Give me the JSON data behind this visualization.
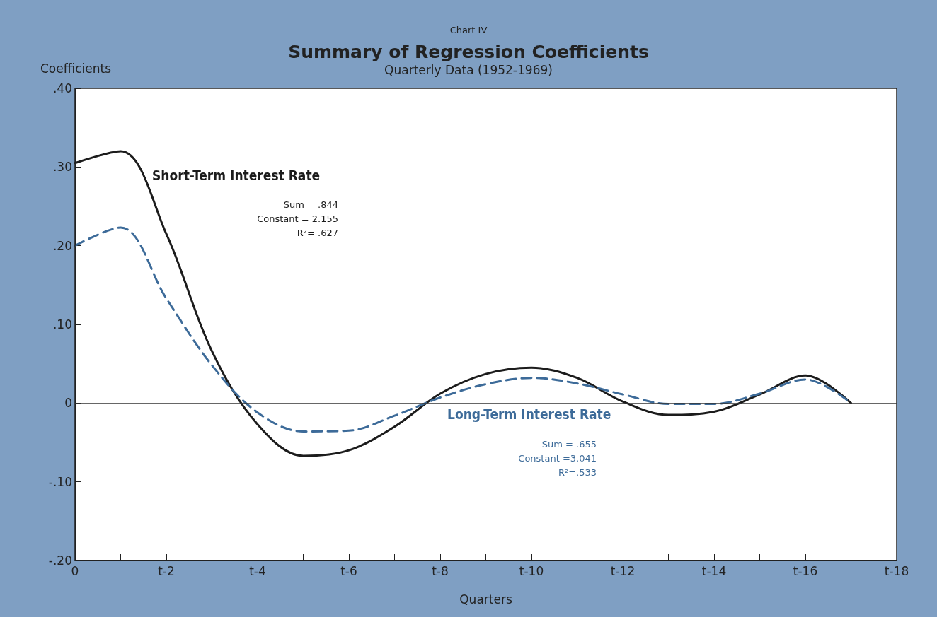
{
  "chart_data": {
    "type": "line",
    "title": "Summary of Regression Coefficients",
    "subtitle": "Quarterly Data (1952-1969)",
    "xlabel": "Quarters",
    "ylabel": "Coefficients",
    "annotations": [
      "Chart IV",
      "Sum = .844\nConstant = 2.155\nR²= .627",
      "Sum = .655\nConstant =3.041\nR²=.533"
    ],
    "series": [
      {
        "name": "Short-Term Interest Rate",
        "color": "#1c1c1c",
        "line_style": "solid",
        "values": [
          0.305,
          0.32,
          0.215,
          0.066,
          -0.027,
          -0.067,
          -0.06,
          -0.03,
          0.012,
          0.037,
          0.045,
          0.032,
          0.002,
          -0.015,
          -0.011,
          0.011,
          0.035,
          0,
          null
        ]
      },
      {
        "name": "Long-Term Interest Rate",
        "color": "#3d6b99",
        "line_style": "dashed",
        "values": [
          0.2,
          0.223,
          0.133,
          0.048,
          -0.012,
          -0.036,
          -0.035,
          -0.016,
          0.007,
          0.024,
          0.032,
          0.025,
          0.011,
          -0.001,
          -0.001,
          0.012,
          0.03,
          0,
          null
        ]
      }
    ],
    "categories": [
      "0",
      null,
      "t-2",
      null,
      "t-4",
      null,
      "t-6",
      null,
      "t-8",
      null,
      "t-10",
      null,
      "t-12",
      null,
      "t-14",
      null,
      "t-16",
      null,
      "t-18"
    ],
    "ylim": [
      -0.2,
      0.4
    ],
    "yticks": [
      {
        "value": -0.2,
        "label": "-.20"
      },
      {
        "value": -0.1,
        "label": "-.10"
      },
      0,
      {
        "value": 0.1,
        "label": ".10"
      },
      {
        "value": 0.2,
        "label": ".20"
      },
      {
        "value": 0.3,
        "label": ".30"
      },
      {
        "value": 0.4,
        "label": ".40"
      }
    ],
    "ref_lines": [
      {
        "axis": "y",
        "value": 0,
        "color": "#333333"
      }
    ],
    "grid": false,
    "legend": false,
    "marker": "none"
  }
}
